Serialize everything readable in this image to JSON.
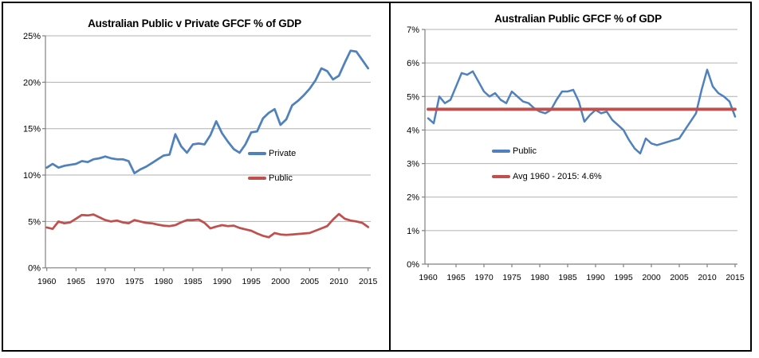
{
  "frame": {
    "background": "#ffffff",
    "border_color": "#000000",
    "divider_color": "#000000",
    "gridline_color": "#b0b0b0",
    "axis_color": "#808080",
    "tick_label_color": "#000000"
  },
  "chart_data": [
    {
      "type": "line",
      "title": "Australian Public v Private GFCF % of GDP",
      "xlabel": "",
      "ylabel": "",
      "ylim": [
        0,
        25
      ],
      "ytick_step": 5,
      "tick_suffix": "%",
      "grid": true,
      "legend_position": "inside-middle-right",
      "xticks": [
        1960,
        1965,
        1970,
        1975,
        1980,
        1985,
        1990,
        1995,
        2000,
        2005,
        2010,
        2015
      ],
      "x": [
        1960,
        1961,
        1962,
        1963,
        1964,
        1965,
        1966,
        1967,
        1968,
        1969,
        1970,
        1971,
        1972,
        1973,
        1974,
        1975,
        1976,
        1977,
        1978,
        1979,
        1980,
        1981,
        1982,
        1983,
        1984,
        1985,
        1986,
        1987,
        1988,
        1989,
        1990,
        1991,
        1992,
        1993,
        1994,
        1995,
        1996,
        1997,
        1998,
        1999,
        2000,
        2001,
        2002,
        2003,
        2004,
        2005,
        2006,
        2007,
        2008,
        2009,
        2010,
        2011,
        2012,
        2013,
        2014,
        2015
      ],
      "series": [
        {
          "name": "Private",
          "color": "#4F81BD",
          "values": [
            10.8,
            11.2,
            10.8,
            11.0,
            11.1,
            11.2,
            11.5,
            11.4,
            11.7,
            11.8,
            12.0,
            11.8,
            11.7,
            11.7,
            11.5,
            10.2,
            10.6,
            10.9,
            11.3,
            11.7,
            12.1,
            12.2,
            14.4,
            13.1,
            12.4,
            13.3,
            13.4,
            13.3,
            14.3,
            15.8,
            14.5,
            13.6,
            12.8,
            12.4,
            13.3,
            14.6,
            14.7,
            16.1,
            16.7,
            17.1,
            15.4,
            16.0,
            17.5,
            18.0,
            18.6,
            19.3,
            20.2,
            21.5,
            21.2,
            20.3,
            20.7,
            22.1,
            23.4,
            23.3,
            22.4,
            21.5
          ]
        },
        {
          "name": "Public",
          "color": "#C0504D",
          "values": [
            4.35,
            4.2,
            5.0,
            4.8,
            4.9,
            5.3,
            5.7,
            5.65,
            5.75,
            5.45,
            5.15,
            5.0,
            5.1,
            4.9,
            4.8,
            5.15,
            5.0,
            4.85,
            4.8,
            4.65,
            4.55,
            4.5,
            4.6,
            4.9,
            5.15,
            5.15,
            5.2,
            4.85,
            4.25,
            4.45,
            4.6,
            4.5,
            4.55,
            4.3,
            4.15,
            4.0,
            3.7,
            3.45,
            3.3,
            3.75,
            3.6,
            3.55,
            3.6,
            3.65,
            3.7,
            3.75,
            4.0,
            4.25,
            4.5,
            5.2,
            5.8,
            5.3,
            5.1,
            5.0,
            4.85,
            4.4
          ]
        }
      ]
    },
    {
      "type": "line",
      "title": "Australian Public GFCF % of GDP",
      "xlabel": "",
      "ylabel": "",
      "ylim": [
        0,
        7
      ],
      "ytick_step": 1,
      "tick_suffix": "%",
      "grid": true,
      "legend_position": "inside-lower-left",
      "xticks": [
        1960,
        1965,
        1970,
        1975,
        1980,
        1985,
        1990,
        1995,
        2000,
        2005,
        2010,
        2015
      ],
      "x": [
        1960,
        1961,
        1962,
        1963,
        1964,
        1965,
        1966,
        1967,
        1968,
        1969,
        1970,
        1971,
        1972,
        1973,
        1974,
        1975,
        1976,
        1977,
        1978,
        1979,
        1980,
        1981,
        1982,
        1983,
        1984,
        1985,
        1986,
        1987,
        1988,
        1989,
        1990,
        1991,
        1992,
        1993,
        1994,
        1995,
        1996,
        1997,
        1998,
        1999,
        2000,
        2001,
        2002,
        2003,
        2004,
        2005,
        2006,
        2007,
        2008,
        2009,
        2010,
        2011,
        2012,
        2013,
        2014,
        2015
      ],
      "series": [
        {
          "name": "Public",
          "color": "#4F81BD",
          "values": [
            4.35,
            4.2,
            5.0,
            4.8,
            4.9,
            5.3,
            5.7,
            5.65,
            5.75,
            5.45,
            5.15,
            5.0,
            5.1,
            4.9,
            4.8,
            5.15,
            5.0,
            4.85,
            4.8,
            4.65,
            4.55,
            4.5,
            4.6,
            4.9,
            5.15,
            5.15,
            5.2,
            4.85,
            4.25,
            4.45,
            4.6,
            4.5,
            4.55,
            4.3,
            4.15,
            4.0,
            3.7,
            3.45,
            3.3,
            3.75,
            3.6,
            3.55,
            3.6,
            3.65,
            3.7,
            3.75,
            4.0,
            4.25,
            4.5,
            5.2,
            5.8,
            5.3,
            5.1,
            5.0,
            4.85,
            4.4
          ]
        }
      ],
      "reference_line": {
        "name": "Avg 1960 - 2015: 4.6%",
        "color": "#C0504D",
        "value": 4.62
      }
    }
  ]
}
